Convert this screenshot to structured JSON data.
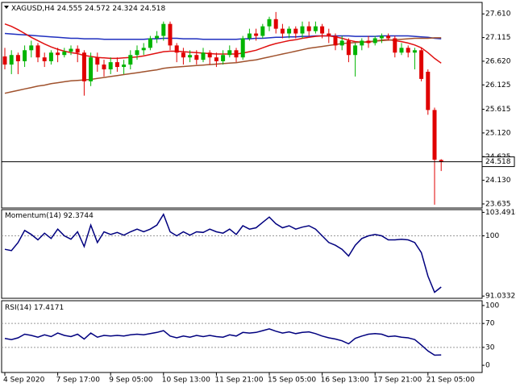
{
  "chart_data": [
    {
      "type": "candlestick",
      "title": "XAGUSD,H4",
      "categories": [
        "4 Sep 2020",
        null,
        null,
        null,
        null,
        null,
        null,
        null,
        "7 Sep 17:00",
        null,
        null,
        null,
        null,
        null,
        null,
        null,
        "9 Sep 05:00",
        null,
        null,
        null,
        null,
        null,
        null,
        null,
        "10 Sep 13:00",
        null,
        null,
        null,
        null,
        null,
        null,
        null,
        "11 Sep 21:00",
        null,
        null,
        null,
        null,
        null,
        null,
        null,
        "15 Sep 05:00",
        null,
        null,
        null,
        null,
        null,
        null,
        null,
        "16 Sep 13:00",
        null,
        null,
        null,
        null,
        null,
        null,
        null,
        "17 Sep 21:00",
        null,
        null,
        null,
        null,
        null,
        null,
        null,
        "21 Sep 05:00",
        null,
        null
      ],
      "open": [
        26.72,
        26.55,
        26.75,
        26.62,
        26.85,
        26.95,
        26.7,
        26.62,
        26.8,
        26.75,
        26.82,
        26.88,
        26.8,
        26.2,
        26.7,
        26.55,
        26.45,
        26.6,
        26.5,
        26.55,
        26.75,
        26.85,
        26.9,
        27.1,
        27.15,
        27.4,
        26.95,
        26.8,
        26.7,
        26.75,
        26.65,
        26.8,
        26.7,
        26.62,
        26.75,
        26.85,
        26.7,
        27.1,
        27.2,
        27.15,
        27.35,
        27.5,
        27.3,
        27.2,
        27.3,
        27.2,
        27.35,
        27.25,
        27.35,
        27.2,
        27.15,
        26.95,
        27.05,
        26.75,
        26.95,
        27.05,
        27.0,
        27.1,
        27.15,
        27.1,
        26.8,
        26.9,
        26.8,
        26.85,
        26.4,
        25.6,
        24.555
      ],
      "high": [
        26.9,
        26.85,
        26.8,
        26.95,
        27.05,
        27.0,
        26.8,
        26.85,
        26.9,
        26.9,
        26.95,
        26.95,
        26.85,
        26.8,
        26.8,
        26.65,
        26.7,
        26.7,
        26.65,
        26.85,
        26.95,
        27.0,
        27.15,
        27.25,
        27.45,
        27.45,
        27.0,
        26.9,
        26.85,
        26.85,
        26.9,
        26.85,
        26.8,
        26.85,
        26.95,
        26.9,
        27.15,
        27.3,
        27.3,
        27.4,
        27.55,
        27.65,
        27.4,
        27.35,
        27.35,
        27.45,
        27.45,
        27.45,
        27.4,
        27.3,
        27.2,
        27.15,
        27.1,
        27.0,
        27.1,
        27.15,
        27.15,
        27.2,
        27.2,
        27.15,
        27.0,
        26.95,
        26.9,
        26.9,
        26.45,
        25.65,
        24.572
      ],
      "low": [
        26.45,
        26.35,
        26.35,
        26.5,
        26.7,
        26.6,
        26.5,
        26.55,
        26.6,
        26.7,
        26.75,
        26.6,
        25.9,
        26.1,
        26.4,
        26.3,
        26.35,
        26.4,
        26.35,
        26.45,
        26.65,
        26.75,
        26.85,
        27.0,
        27.05,
        26.85,
        26.6,
        26.55,
        26.6,
        26.55,
        26.6,
        26.55,
        26.5,
        26.55,
        26.7,
        26.6,
        26.65,
        27.05,
        27.05,
        27.1,
        27.25,
        27.2,
        27.1,
        27.1,
        27.1,
        27.1,
        27.15,
        27.2,
        27.1,
        27.0,
        26.85,
        26.85,
        26.6,
        26.3,
        26.85,
        26.9,
        26.95,
        27.0,
        27.05,
        26.7,
        26.75,
        26.7,
        26.45,
        26.2,
        25.5,
        23.62,
        24.324
      ],
      "close": [
        26.55,
        26.75,
        26.62,
        26.85,
        26.95,
        26.7,
        26.62,
        26.8,
        26.75,
        26.82,
        26.88,
        26.8,
        26.2,
        26.7,
        26.55,
        26.45,
        26.6,
        26.5,
        26.55,
        26.75,
        26.85,
        26.9,
        27.1,
        27.15,
        27.4,
        26.95,
        26.8,
        26.7,
        26.75,
        26.65,
        26.8,
        26.7,
        26.62,
        26.75,
        26.85,
        26.7,
        27.1,
        27.2,
        27.15,
        27.35,
        27.5,
        27.3,
        27.2,
        27.3,
        27.2,
        27.35,
        27.25,
        27.35,
        27.2,
        27.15,
        26.95,
        27.05,
        26.75,
        26.95,
        27.05,
        27.0,
        27.1,
        27.15,
        27.1,
        26.8,
        26.9,
        26.8,
        26.85,
        26.25,
        25.6,
        24.56,
        24.518
      ],
      "up_color": "#00b400",
      "down_color": "#e00000",
      "series": [
        {
          "color": "#1f2fbf",
          "values": [
            27.2,
            27.19,
            27.18,
            27.17,
            27.16,
            27.15,
            27.14,
            27.13,
            27.12,
            27.11,
            27.1,
            27.1,
            27.09,
            27.09,
            27.09,
            27.08,
            27.08,
            27.08,
            27.08,
            27.08,
            27.08,
            27.08,
            27.09,
            27.09,
            27.1,
            27.1,
            27.1,
            27.09,
            27.09,
            27.09,
            27.08,
            27.08,
            27.08,
            27.08,
            27.08,
            27.08,
            27.09,
            27.09,
            27.1,
            27.1,
            27.11,
            27.12,
            27.12,
            27.13,
            27.13,
            27.14,
            27.14,
            27.15,
            27.15,
            27.15,
            27.15,
            27.15,
            27.15,
            27.14,
            27.14,
            27.14,
            27.14,
            27.15,
            27.15,
            27.15,
            27.15,
            27.15,
            27.14,
            27.13,
            27.12,
            27.1,
            27.09
          ]
        },
        {
          "color": "#e01010",
          "values": [
            27.4,
            27.35,
            27.28,
            27.2,
            27.12,
            27.05,
            26.98,
            26.92,
            26.87,
            26.83,
            26.8,
            26.78,
            26.74,
            26.72,
            26.7,
            26.69,
            26.68,
            26.68,
            26.69,
            26.7,
            26.71,
            26.73,
            26.76,
            26.79,
            26.82,
            26.83,
            26.83,
            26.82,
            26.81,
            26.8,
            26.79,
            26.78,
            26.77,
            26.77,
            26.77,
            26.77,
            26.79,
            26.82,
            26.85,
            26.9,
            26.95,
            26.99,
            27.02,
            27.05,
            27.07,
            27.1,
            27.12,
            27.14,
            27.15,
            27.15,
            27.13,
            27.1,
            27.06,
            27.03,
            27.02,
            27.02,
            27.04,
            27.06,
            27.07,
            27.05,
            27.03,
            27.0,
            26.96,
            26.9,
            26.8,
            26.68,
            26.58
          ]
        },
        {
          "color": "#a0522d",
          "values": [
            25.95,
            25.98,
            26.01,
            26.04,
            26.07,
            26.1,
            26.12,
            26.15,
            26.17,
            26.19,
            26.21,
            26.22,
            26.23,
            26.24,
            26.26,
            26.28,
            26.3,
            26.32,
            26.34,
            26.36,
            26.38,
            26.4,
            26.42,
            26.44,
            26.47,
            26.49,
            26.5,
            26.51,
            26.52,
            26.53,
            26.54,
            26.55,
            26.56,
            26.57,
            26.58,
            26.59,
            26.61,
            26.63,
            26.65,
            26.68,
            26.71,
            26.74,
            26.77,
            26.8,
            26.83,
            26.86,
            26.89,
            26.91,
            26.93,
            26.95,
            26.97,
            26.99,
            27.0,
            27.01,
            27.02,
            27.03,
            27.04,
            27.05,
            27.06,
            27.07,
            27.08,
            27.09,
            27.1,
            27.1,
            27.1,
            27.11,
            27.11
          ]
        }
      ],
      "ylim": [
        23.55,
        27.85
      ],
      "yticks": [
        {
          "value": 27.61,
          "label": "27.610"
        },
        {
          "value": 27.115,
          "label": "27.115"
        },
        {
          "value": 26.62,
          "label": "26.620"
        },
        {
          "value": 26.125,
          "label": "26.125"
        },
        {
          "value": 25.615,
          "label": "25.615"
        },
        {
          "value": 25.12,
          "label": "25.120"
        },
        {
          "value": 24.625,
          "label": "24.625"
        },
        {
          "value": 24.13,
          "label": "24.130"
        },
        {
          "value": 23.635,
          "label": "23.635"
        }
      ]
    },
    {
      "type": "line",
      "title": "Momentum(14)",
      "color": "#00007f",
      "values": [
        98.0,
        97.8,
        99.0,
        100.8,
        100.2,
        99.4,
        100.4,
        99.6,
        101.0,
        100.0,
        99.5,
        100.6,
        98.4,
        101.6,
        99.0,
        100.6,
        100.2,
        100.5,
        100.1,
        100.6,
        101.0,
        100.6,
        101.0,
        101.6,
        103.2,
        100.6,
        100.0,
        100.6,
        100.1,
        100.6,
        100.5,
        101.0,
        100.6,
        100.4,
        101.0,
        100.2,
        101.5,
        101.0,
        101.2,
        102.0,
        102.8,
        101.8,
        101.2,
        101.5,
        101.0,
        101.3,
        101.5,
        101.0,
        100.0,
        99.0,
        98.6,
        98.0,
        97.0,
        98.6,
        99.6,
        100.0,
        100.2,
        100.0,
        99.4,
        99.4,
        99.5,
        99.4,
        99.0,
        97.5,
        94.0,
        91.6,
        92.3744
      ],
      "ylim": [
        90.7,
        103.9
      ],
      "yticks": [
        103.4918,
        100,
        91.0332
      ],
      "levels": [
        100
      ]
    },
    {
      "type": "line",
      "title": "RSI(14)",
      "color": "#00007f",
      "values": [
        45,
        43,
        46,
        52,
        50,
        47,
        51,
        48,
        54,
        50,
        48,
        52,
        44,
        54,
        47,
        50,
        49,
        50,
        49,
        51,
        52,
        51,
        53,
        55,
        58,
        49,
        46,
        49,
        47,
        50,
        48,
        50,
        48,
        47,
        51,
        49,
        55,
        54,
        55,
        58,
        61,
        57,
        54,
        56,
        53,
        55,
        56,
        53,
        49,
        46,
        44,
        41,
        36,
        45,
        49,
        52,
        53,
        52,
        48,
        49,
        47,
        46,
        43,
        34,
        24,
        17,
        17.4171
      ],
      "ylim": [
        -12,
        108
      ],
      "yticks": [
        100,
        70,
        30,
        0
      ],
      "levels": [
        70,
        30
      ]
    }
  ]
}
